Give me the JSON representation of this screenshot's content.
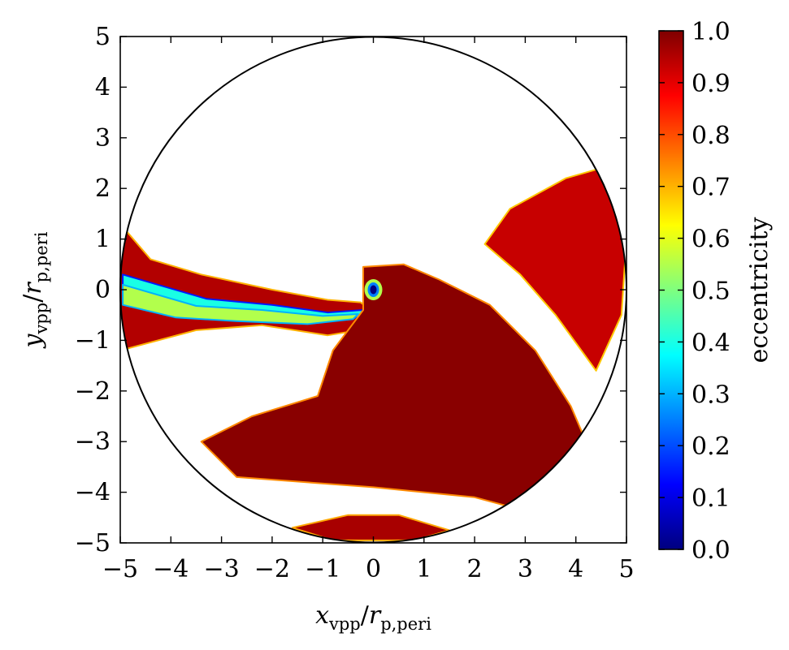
{
  "chart_data": {
    "type": "heatmap",
    "title": "",
    "xlabel": {
      "base": "x",
      "sub1": "vpp",
      "mid": "/",
      "base2": "r",
      "sub2": "p,peri"
    },
    "ylabel": {
      "base": "y",
      "sub1": "vpp",
      "mid": "/",
      "base2": "r",
      "sub2": "p,peri"
    },
    "xlim": [
      -5,
      5
    ],
    "ylim": [
      -5,
      5
    ],
    "x_ticks": [
      -5,
      -4,
      -3,
      -2,
      -1,
      0,
      1,
      2,
      3,
      4,
      5
    ],
    "y_ticks": [
      -5,
      -4,
      -3,
      -2,
      -1,
      0,
      1,
      2,
      3,
      4,
      5
    ],
    "x_tick_labels": [
      "−5",
      "−4",
      "−3",
      "−2",
      "−1",
      "0",
      "1",
      "2",
      "3",
      "4",
      "5"
    ],
    "y_tick_labels": [
      "−5",
      "−4",
      "−3",
      "−2",
      "−1",
      "0",
      "1",
      "2",
      "3",
      "4",
      "5"
    ],
    "boundary_circle": {
      "center": [
        0,
        0
      ],
      "radius": 5
    },
    "grid": false,
    "colorbar": {
      "label": "eccentricity",
      "range": [
        0.0,
        1.0
      ],
      "ticks": [
        0.0,
        0.1,
        0.2,
        0.3,
        0.4,
        0.5,
        0.6,
        0.7,
        0.8,
        0.9,
        1.0
      ],
      "tick_labels": [
        "0.0",
        "0.1",
        "0.2",
        "0.3",
        "0.4",
        "0.5",
        "0.6",
        "0.7",
        "0.8",
        "0.9",
        "1.0"
      ],
      "colormap": "jet",
      "colormap_stops": [
        "#00007f",
        "#0000ff",
        "#007fff",
        "#00ffff",
        "#7fff7f",
        "#ffff00",
        "#ff7f00",
        "#ff0000",
        "#7f0000"
      ]
    },
    "regions": [
      {
        "name": "left-stream",
        "eccentricity": 0.95,
        "polygon": [
          [
            -5.0,
            1.3
          ],
          [
            -4.4,
            0.6
          ],
          [
            -3.4,
            0.3
          ],
          [
            -2.0,
            0.0
          ],
          [
            -0.9,
            -0.2
          ],
          [
            -0.25,
            -0.25
          ],
          [
            0.3,
            -0.7
          ],
          [
            -0.9,
            -0.9
          ],
          [
            -2.2,
            -0.7
          ],
          [
            -3.5,
            -0.8
          ],
          [
            -5.0,
            -1.2
          ]
        ]
      },
      {
        "name": "left-stream-band",
        "eccentricity": 0.4,
        "polygon": [
          [
            -4.95,
            0.3
          ],
          [
            -3.3,
            -0.18
          ],
          [
            -2.0,
            -0.3
          ],
          [
            -0.9,
            -0.45
          ],
          [
            -0.2,
            -0.4
          ],
          [
            -0.3,
            -0.55
          ],
          [
            -1.2,
            -0.62
          ],
          [
            -2.6,
            -0.55
          ],
          [
            -3.8,
            -0.45
          ],
          [
            -4.95,
            -0.1
          ]
        ]
      },
      {
        "name": "left-stream-band-inner",
        "eccentricity": 0.55,
        "polygon": [
          [
            -4.95,
            0.1
          ],
          [
            -3.5,
            -0.32
          ],
          [
            -2.2,
            -0.4
          ],
          [
            -1.0,
            -0.52
          ],
          [
            -0.3,
            -0.48
          ],
          [
            -0.4,
            -0.58
          ],
          [
            -1.3,
            -0.68
          ],
          [
            -2.7,
            -0.62
          ],
          [
            -3.9,
            -0.55
          ],
          [
            -4.95,
            -0.3
          ]
        ]
      },
      {
        "name": "central-lobe",
        "eccentricity": 0.99,
        "polygon": [
          [
            -0.2,
            0.45
          ],
          [
            0.6,
            0.5
          ],
          [
            1.3,
            0.2
          ],
          [
            2.3,
            -0.3
          ],
          [
            3.2,
            -1.2
          ],
          [
            3.9,
            -2.3
          ],
          [
            4.2,
            -3.0
          ],
          [
            3.5,
            -4.5
          ],
          [
            2.0,
            -4.1
          ],
          [
            0.0,
            -3.9
          ],
          [
            -2.7,
            -3.7
          ],
          [
            -3.4,
            -3.0
          ],
          [
            -2.4,
            -2.5
          ],
          [
            -1.1,
            -2.1
          ],
          [
            -0.8,
            -1.2
          ],
          [
            -0.2,
            -0.4
          ]
        ]
      },
      {
        "name": "right-lobe",
        "eccentricity": 0.93,
        "polygon": [
          [
            2.2,
            0.9
          ],
          [
            2.7,
            1.6
          ],
          [
            3.8,
            2.2
          ],
          [
            4.5,
            2.4
          ],
          [
            5.0,
            1.0
          ],
          [
            4.9,
            -0.5
          ],
          [
            4.4,
            -1.6
          ],
          [
            3.6,
            -0.5
          ],
          [
            2.9,
            0.3
          ]
        ]
      },
      {
        "name": "bottom-lobe",
        "eccentricity": 0.96,
        "polygon": [
          [
            -1.6,
            -4.7
          ],
          [
            -0.5,
            -4.45
          ],
          [
            0.5,
            -4.45
          ],
          [
            1.5,
            -4.75
          ],
          [
            0.8,
            -4.95
          ],
          [
            -0.8,
            -4.95
          ]
        ]
      }
    ],
    "annotations": [
      {
        "name": "low-eccentricity-core",
        "x": 0.0,
        "y": 0.0,
        "eccentricity": 0.0
      }
    ]
  }
}
